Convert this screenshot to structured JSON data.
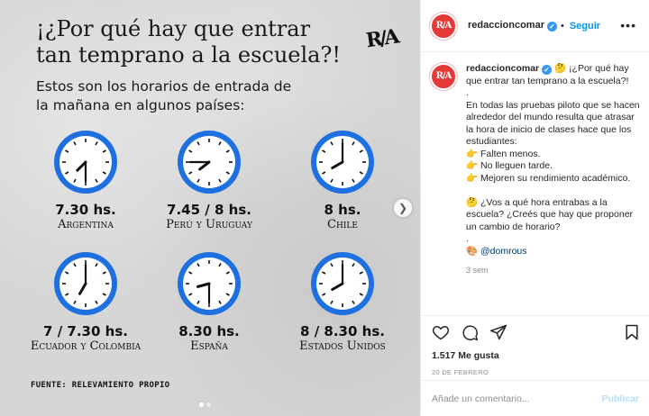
{
  "post_image": {
    "headline": "¡¿Por qué hay que entrar tan temprano a la escuela?!",
    "subhead": "Estos son los horarios de entrada de la mañana en algunos países:",
    "logo_text": "R/A",
    "source": "FUENTE: RELEVAMIENTO PROPIO",
    "clocks": [
      {
        "time": "7.30 hs.",
        "country": "Argentina",
        "hour": 7.5
      },
      {
        "time": "7.45 / 8 hs.",
        "country": "Perú y Uruguay",
        "hour": 7.75
      },
      {
        "time": "8 hs.",
        "country": "Chile",
        "hour": 8
      },
      {
        "time": "7 / 7.30 hs.",
        "country": "Ecuador y Colombia",
        "hour": 7
      },
      {
        "time": "8.30 hs.",
        "country": "España",
        "hour": 8.5
      },
      {
        "time": "8 / 8.30 hs.",
        "country": "Estados Unidos",
        "hour": 8
      }
    ],
    "clock_color": "#1e6fe0",
    "carousel_page": 1,
    "carousel_total": 2
  },
  "header": {
    "username": "redaccioncomar",
    "separator": "•",
    "follow_label": "Seguir",
    "more_icon": "more-horizontal-icon",
    "avatar_text": "R/A"
  },
  "caption": {
    "username": "redaccioncomar",
    "text": "🤔 ¡¿Por qué hay que entrar tan temprano a la escuela?!\n.\nEn todas las pruebas piloto que se hacen alrededor del mundo resulta que atrasar la hora de inicio de clases hace que los estudiantes:\n👉 Falten menos.\n👉 No lleguen tarde.\n👉 Mejoren su rendimiento académico.\n\n🤔 ¿Vos a qué hora entrabas a la escuela? ¿Creés que hay que proponer un cambio de horario?\n.\n🎨 ",
    "mention": "@domrous",
    "time_ago": "3 sem"
  },
  "actions": {
    "likes": "1.517 Me gusta",
    "date": "20 DE FEBRERO"
  },
  "comment": {
    "placeholder": "Añade un comentario...",
    "post_label": "Publicar"
  }
}
